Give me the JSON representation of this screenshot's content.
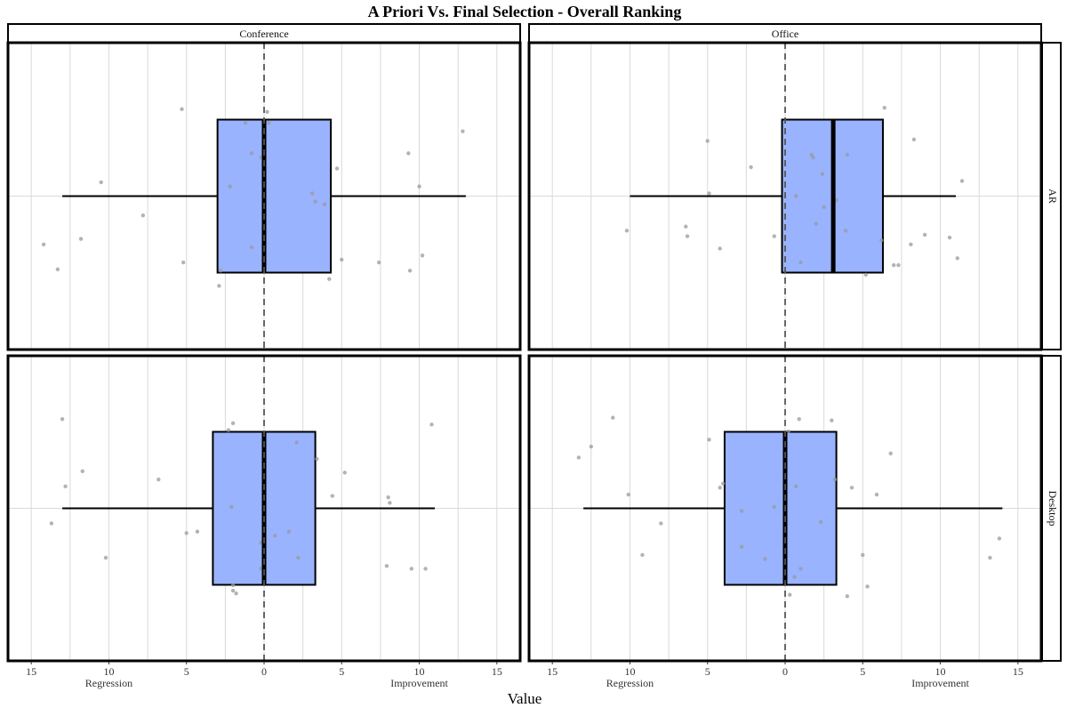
{
  "chart_data": {
    "type": "boxplot",
    "title": "A Priori Vs. Final Selection - Overall Ranking",
    "xlabel": "Value",
    "x_tick_labels": [
      "15",
      "10",
      "5",
      "0",
      "5",
      "10",
      "15"
    ],
    "x_tick_values": [
      -15,
      -10,
      -5,
      0,
      5,
      10,
      15
    ],
    "xlim": [
      -16.5,
      16.5
    ],
    "x_direction_labels": {
      "negative": "Regression",
      "positive": "Improvement"
    },
    "reference_line_x": 0,
    "grid": true,
    "column_facets": [
      "Conference",
      "Office"
    ],
    "row_facets": [
      "AR",
      "Desktop"
    ],
    "box_color": "#99B3FF",
    "point_color": "#999999",
    "panels": [
      {
        "column": "Conference",
        "row": "AR",
        "whisker_low": -13,
        "q1": -3,
        "median": 0,
        "q3": 4.3,
        "whisker_high": 13,
        "points": [
          {
            "x": -14.2,
            "y": -0.35
          },
          {
            "x": -13.3,
            "y": -0.53
          },
          {
            "x": -11.8,
            "y": -0.31
          },
          {
            "x": -10.5,
            "y": 0.1
          },
          {
            "x": -7.8,
            "y": -0.14
          },
          {
            "x": -5.3,
            "y": 0.63
          },
          {
            "x": -5.2,
            "y": -0.48
          },
          {
            "x": -2.9,
            "y": -0.65
          },
          {
            "x": -2.8,
            "y": -0.54
          },
          {
            "x": -2.2,
            "y": 0.07
          },
          {
            "x": -1.2,
            "y": 0.53
          },
          {
            "x": -0.8,
            "y": 0.31
          },
          {
            "x": -0.8,
            "y": -0.37
          },
          {
            "x": -0.2,
            "y": 0.28
          },
          {
            "x": 0.2,
            "y": 0.61
          },
          {
            "x": 0.3,
            "y": 0.53
          },
          {
            "x": 3.1,
            "y": 0.02
          },
          {
            "x": 3.3,
            "y": -0.04
          },
          {
            "x": 3.9,
            "y": -0.06
          },
          {
            "x": 4.2,
            "y": -0.6
          },
          {
            "x": 4.7,
            "y": 0.2
          },
          {
            "x": 5.0,
            "y": -0.46
          },
          {
            "x": 7.4,
            "y": -0.48
          },
          {
            "x": 9.4,
            "y": -0.54
          },
          {
            "x": 9.3,
            "y": 0.31
          },
          {
            "x": 10.0,
            "y": 0.07
          },
          {
            "x": 10.2,
            "y": -0.43
          },
          {
            "x": 12.8,
            "y": 0.47
          }
        ]
      },
      {
        "column": "Office",
        "row": "AR",
        "whisker_low": -10,
        "q1": -0.2,
        "median": 3.1,
        "q3": 6.3,
        "whisker_high": 11,
        "points": [
          {
            "x": -10.2,
            "y": -0.25
          },
          {
            "x": -6.4,
            "y": -0.22
          },
          {
            "x": -6.3,
            "y": -0.29
          },
          {
            "x": -4.2,
            "y": -0.38
          },
          {
            "x": -5.0,
            "y": 0.4
          },
          {
            "x": -4.9,
            "y": 0.02
          },
          {
            "x": -2.2,
            "y": 0.21
          },
          {
            "x": -0.7,
            "y": -0.29
          },
          {
            "x": 0.7,
            "y": 0.0
          },
          {
            "x": 1.0,
            "y": -0.48
          },
          {
            "x": 1.7,
            "y": 0.3
          },
          {
            "x": 1.8,
            "y": 0.28
          },
          {
            "x": 2.0,
            "y": -0.2
          },
          {
            "x": 2.4,
            "y": 0.16
          },
          {
            "x": 2.5,
            "y": -0.08
          },
          {
            "x": 3.3,
            "y": -0.03
          },
          {
            "x": 3.9,
            "y": -0.25
          },
          {
            "x": 4.0,
            "y": 0.3
          },
          {
            "x": 5.2,
            "y": -0.57
          },
          {
            "x": 6.2,
            "y": -0.32
          },
          {
            "x": 6.4,
            "y": 0.64
          },
          {
            "x": 7.0,
            "y": -0.5
          },
          {
            "x": 7.3,
            "y": -0.5
          },
          {
            "x": 8.1,
            "y": -0.35
          },
          {
            "x": 8.3,
            "y": 0.41
          },
          {
            "x": 9.0,
            "y": -0.28
          },
          {
            "x": 10.6,
            "y": -0.3
          },
          {
            "x": 11.1,
            "y": -0.45
          },
          {
            "x": 11.4,
            "y": 0.11
          }
        ]
      },
      {
        "column": "Conference",
        "row": "Desktop",
        "whisker_low": -13,
        "q1": -3.3,
        "median": 0,
        "q3": 3.3,
        "whisker_high": 11,
        "points": [
          {
            "x": -13.7,
            "y": -0.11
          },
          {
            "x": -13.0,
            "y": 0.65
          },
          {
            "x": -12.8,
            "y": 0.16
          },
          {
            "x": -11.7,
            "y": 0.27
          },
          {
            "x": -10.2,
            "y": -0.36
          },
          {
            "x": -6.8,
            "y": 0.21
          },
          {
            "x": -5.0,
            "y": -0.18
          },
          {
            "x": -4.3,
            "y": -0.17
          },
          {
            "x": -2.3,
            "y": 0.57
          },
          {
            "x": -2.1,
            "y": 0.01
          },
          {
            "x": -2.0,
            "y": 0.62
          },
          {
            "x": -2.0,
            "y": -0.56
          },
          {
            "x": -2.0,
            "y": -0.6
          },
          {
            "x": -1.8,
            "y": -0.62
          },
          {
            "x": -0.2,
            "y": -0.25
          },
          {
            "x": -0.2,
            "y": -0.44
          },
          {
            "x": 0.7,
            "y": -0.2
          },
          {
            "x": 1.6,
            "y": -0.17
          },
          {
            "x": 2.1,
            "y": 0.48
          },
          {
            "x": 2.2,
            "y": -0.36
          },
          {
            "x": 3.4,
            "y": 0.36
          },
          {
            "x": 4.4,
            "y": 0.09
          },
          {
            "x": 5.2,
            "y": 0.26
          },
          {
            "x": 8.0,
            "y": 0.08
          },
          {
            "x": 8.1,
            "y": 0.04
          },
          {
            "x": 7.9,
            "y": -0.42
          },
          {
            "x": 9.5,
            "y": -0.44
          },
          {
            "x": 10.4,
            "y": -0.44
          },
          {
            "x": 10.8,
            "y": 0.61
          }
        ]
      },
      {
        "column": "Office",
        "row": "Desktop",
        "whisker_low": -13,
        "q1": -3.9,
        "median": 0,
        "q3": 3.3,
        "whisker_high": 14,
        "points": [
          {
            "x": -13.3,
            "y": 0.37
          },
          {
            "x": -12.5,
            "y": 0.45
          },
          {
            "x": -11.1,
            "y": 0.66
          },
          {
            "x": -10.1,
            "y": 0.1
          },
          {
            "x": -9.2,
            "y": -0.34
          },
          {
            "x": -8.0,
            "y": -0.11
          },
          {
            "x": -4.9,
            "y": 0.5
          },
          {
            "x": -4.2,
            "y": 0.15
          },
          {
            "x": -4.0,
            "y": 0.18
          },
          {
            "x": -2.8,
            "y": -0.02
          },
          {
            "x": -2.8,
            "y": -0.28
          },
          {
            "x": -1.3,
            "y": -0.37
          },
          {
            "x": -0.7,
            "y": 0.01
          },
          {
            "x": 0.2,
            "y": 0.56
          },
          {
            "x": 0.3,
            "y": -0.63
          },
          {
            "x": 0.6,
            "y": -0.5
          },
          {
            "x": 0.7,
            "y": 0.16
          },
          {
            "x": 0.9,
            "y": 0.65
          },
          {
            "x": 1.0,
            "y": -0.44
          },
          {
            "x": 2.3,
            "y": -0.1
          },
          {
            "x": 3.0,
            "y": 0.64
          },
          {
            "x": 3.2,
            "y": 0.21
          },
          {
            "x": 4.3,
            "y": 0.15
          },
          {
            "x": 4.0,
            "y": -0.64
          },
          {
            "x": 5.0,
            "y": -0.34
          },
          {
            "x": 5.3,
            "y": -0.57
          },
          {
            "x": 5.9,
            "y": 0.1
          },
          {
            "x": 6.8,
            "y": 0.4
          },
          {
            "x": 13.2,
            "y": -0.36
          },
          {
            "x": 13.8,
            "y": -0.22
          }
        ]
      }
    ]
  }
}
